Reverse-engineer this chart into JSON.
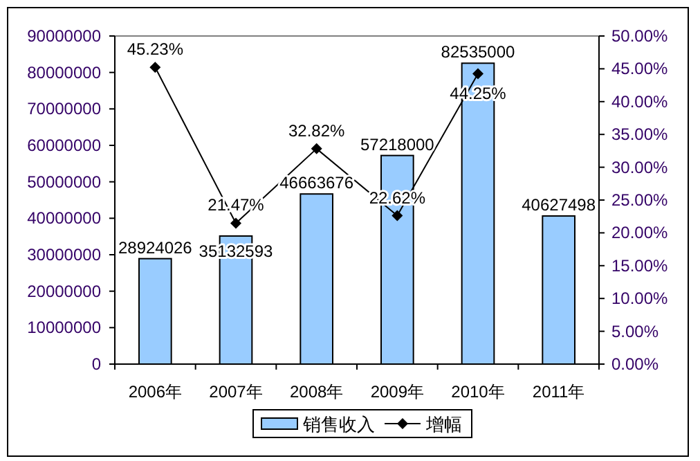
{
  "chart_data": {
    "type": "bar",
    "categories": [
      "2006年",
      "2007年",
      "2008年",
      "2009年",
      "2010年",
      "2011年"
    ],
    "series": [
      {
        "name": "销售收入",
        "color": "#99ccff",
        "values": [
          28924026,
          35132593,
          46663676,
          57218000,
          82535000,
          40627498
        ],
        "value_labels": [
          "28924026",
          "35132593",
          "46663676",
          "57218000",
          "82535000",
          "40627498"
        ]
      },
      {
        "name": "增幅",
        "type": "line",
        "axis": "y2",
        "color": "#000000",
        "values": [
          45.23,
          21.47,
          32.82,
          22.62,
          44.25,
          null
        ],
        "value_labels": [
          "45.23%",
          "21.47%",
          "32.82%",
          "22.62%",
          "44.25%",
          null
        ]
      }
    ],
    "ylim": [
      0,
      90000000
    ],
    "yticks": [
      0,
      10000000,
      20000000,
      30000000,
      40000000,
      50000000,
      60000000,
      70000000,
      80000000,
      90000000
    ],
    "y2lim": [
      0,
      50
    ],
    "y2ticks": [
      {
        "value": 0,
        "label": "0.00%"
      },
      {
        "value": 5,
        "label": "5.00%"
      },
      {
        "value": 10,
        "label": "10.00%"
      },
      {
        "value": 15,
        "label": "15.00%"
      },
      {
        "value": 20,
        "label": "20.00%"
      },
      {
        "value": 25,
        "label": "25.00%"
      },
      {
        "value": 30,
        "label": "30.00%"
      },
      {
        "value": 35,
        "label": "35.00%"
      },
      {
        "value": 40,
        "label": "40.00%"
      },
      {
        "value": 45,
        "label": "45.00%"
      },
      {
        "value": 50,
        "label": "50.00%"
      }
    ],
    "marker": "diamond",
    "legend": "bottom",
    "grid": false
  }
}
